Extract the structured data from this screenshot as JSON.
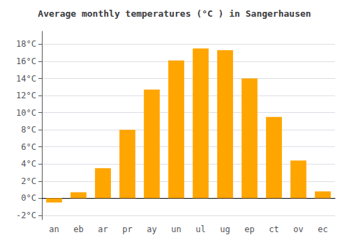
{
  "chart_data": {
    "type": "bar",
    "title": "Average monthly temperatures (°C ) in Sangerhausen",
    "categories": [
      "an",
      "eb",
      "ar",
      "pr",
      "ay",
      "un",
      "ul",
      "ug",
      "ep",
      "ct",
      "ov",
      "ec"
    ],
    "values": [
      -0.5,
      0.7,
      3.5,
      8.0,
      12.7,
      16.1,
      17.5,
      17.3,
      14.0,
      9.5,
      4.4,
      0.8
    ],
    "color": "#FFA500",
    "ylim": [
      -2.5,
      19.5
    ],
    "yticks": [
      {
        "value": -2,
        "label": "-2°C"
      },
      {
        "value": 0,
        "label": "0°C"
      },
      {
        "value": 2,
        "label": "2°C"
      },
      {
        "value": 4,
        "label": "4°C"
      },
      {
        "value": 6,
        "label": "6°C"
      },
      {
        "value": 8,
        "label": "8°C"
      },
      {
        "value": 10,
        "label": "10°C"
      },
      {
        "value": 12,
        "label": "12°C"
      },
      {
        "value": 14,
        "label": "14°C"
      },
      {
        "value": 16,
        "label": "16°C"
      },
      {
        "value": 18,
        "label": "18°C"
      }
    ],
    "grid": true
  }
}
